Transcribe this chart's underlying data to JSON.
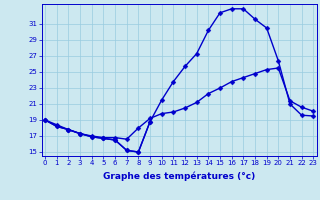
{
  "xlabel": "Graphe des températures (°c)",
  "background_color": "#cce8f0",
  "grid_color": "#99cce0",
  "line_color": "#0000cc",
  "hours": [
    0,
    1,
    2,
    3,
    4,
    5,
    6,
    7,
    8,
    9,
    10,
    11,
    12,
    13,
    14,
    15,
    16,
    17,
    18,
    19,
    20,
    21,
    22,
    23
  ],
  "line_high": [
    19.0,
    18.2,
    17.8,
    17.3,
    16.9,
    16.7,
    16.5,
    15.2,
    15.0,
    18.8,
    21.5,
    23.8,
    25.7,
    27.3,
    30.2,
    32.4,
    32.9,
    32.9,
    31.6,
    30.5,
    26.4,
    21.0,
    19.6,
    19.5
  ],
  "line_low": [
    19.0,
    18.2,
    17.8,
    17.3,
    16.9,
    16.7,
    16.5,
    15.2,
    15.0,
    18.8,
    null,
    null,
    null,
    null,
    null,
    null,
    null,
    null,
    null,
    null,
    null,
    null,
    null,
    null
  ],
  "line_mid": [
    19.0,
    18.4,
    17.8,
    17.3,
    17.0,
    16.8,
    16.8,
    16.6,
    18.0,
    19.2,
    19.8,
    20.0,
    20.5,
    21.2,
    22.3,
    23.0,
    23.8,
    24.3,
    24.8,
    25.3,
    25.5,
    21.4,
    20.6,
    20.1
  ],
  "ylim": [
    14.5,
    33.5
  ],
  "yticks": [
    15,
    17,
    19,
    21,
    23,
    25,
    27,
    29,
    31
  ],
  "xlim": [
    -0.3,
    23.3
  ],
  "linewidth": 1.0,
  "markersize": 2.5,
  "tick_fontsize": 5.0,
  "xlabel_fontsize": 6.5
}
